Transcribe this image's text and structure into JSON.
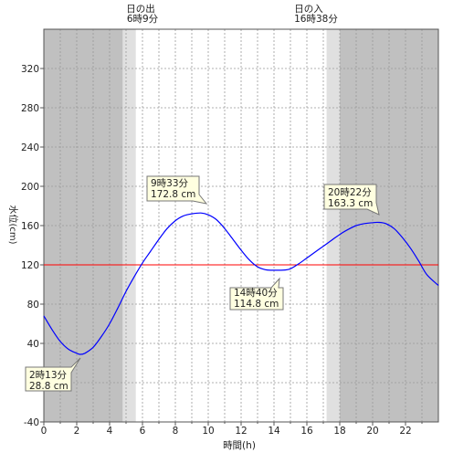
{
  "chart_data": {
    "type": "line",
    "xlabel": "時間(h)",
    "ylabel": "水位(cm)",
    "xlim": [
      0,
      24
    ],
    "ylim": [
      -40,
      360
    ],
    "x_ticks": [
      0,
      2,
      4,
      6,
      8,
      10,
      12,
      14,
      16,
      18,
      20,
      22
    ],
    "y_ticks": [
      -40,
      0,
      40,
      80,
      120,
      160,
      200,
      240,
      280,
      320
    ],
    "grid": true,
    "reference_line": {
      "y": 120,
      "color": "#ff0000"
    },
    "sunrise": {
      "label": "日の出",
      "time": "6時9分",
      "hour": 6.15
    },
    "sunset": {
      "label": "日の入",
      "time": "16時38分",
      "hour": 16.63
    },
    "shading": {
      "night_color": "#c0c0c0",
      "twilight_color": "#e0e0e0",
      "day_color": "#ffffff",
      "dawn_twilight": [
        4.8,
        5.6
      ],
      "dusk_twilight": [
        17.2,
        18.0
      ]
    },
    "series": [
      {
        "color": "#0000ff",
        "x": [
          0,
          0.5,
          1,
          1.5,
          2,
          2.22,
          2.5,
          3,
          3.5,
          4,
          4.5,
          5,
          5.5,
          6,
          6.5,
          7,
          7.5,
          8,
          8.5,
          9,
          9.55,
          10,
          10.5,
          11,
          11.5,
          12,
          12.5,
          13,
          13.5,
          14,
          14.67,
          15,
          15.5,
          16,
          16.5,
          17,
          17.5,
          18,
          18.5,
          19,
          19.5,
          20,
          20.37,
          20.8,
          21.3,
          21.8,
          22.3,
          22.8,
          23.3,
          24
        ],
        "y": [
          68,
          54,
          42,
          34,
          30,
          28.8,
          30,
          36,
          47,
          60,
          76,
          93,
          108,
          122,
          134,
          146,
          157,
          165,
          170,
          172,
          172.8,
          171,
          166,
          157,
          146,
          135,
          125,
          118,
          115,
          114.5,
          114.8,
          116,
          121,
          127,
          133,
          139,
          145,
          151,
          156,
          160,
          162,
          163,
          163.3,
          162,
          157,
          148,
          137,
          124,
          110,
          99
        ]
      }
    ],
    "annotations": [
      {
        "time": "2時13分",
        "value": "28.8 cm"
      },
      {
        "time": "9時33分",
        "value": "172.8 cm"
      },
      {
        "time": "14時40分",
        "value": "114.8 cm"
      },
      {
        "time": "20時22分",
        "value": "163.3 cm"
      }
    ]
  }
}
